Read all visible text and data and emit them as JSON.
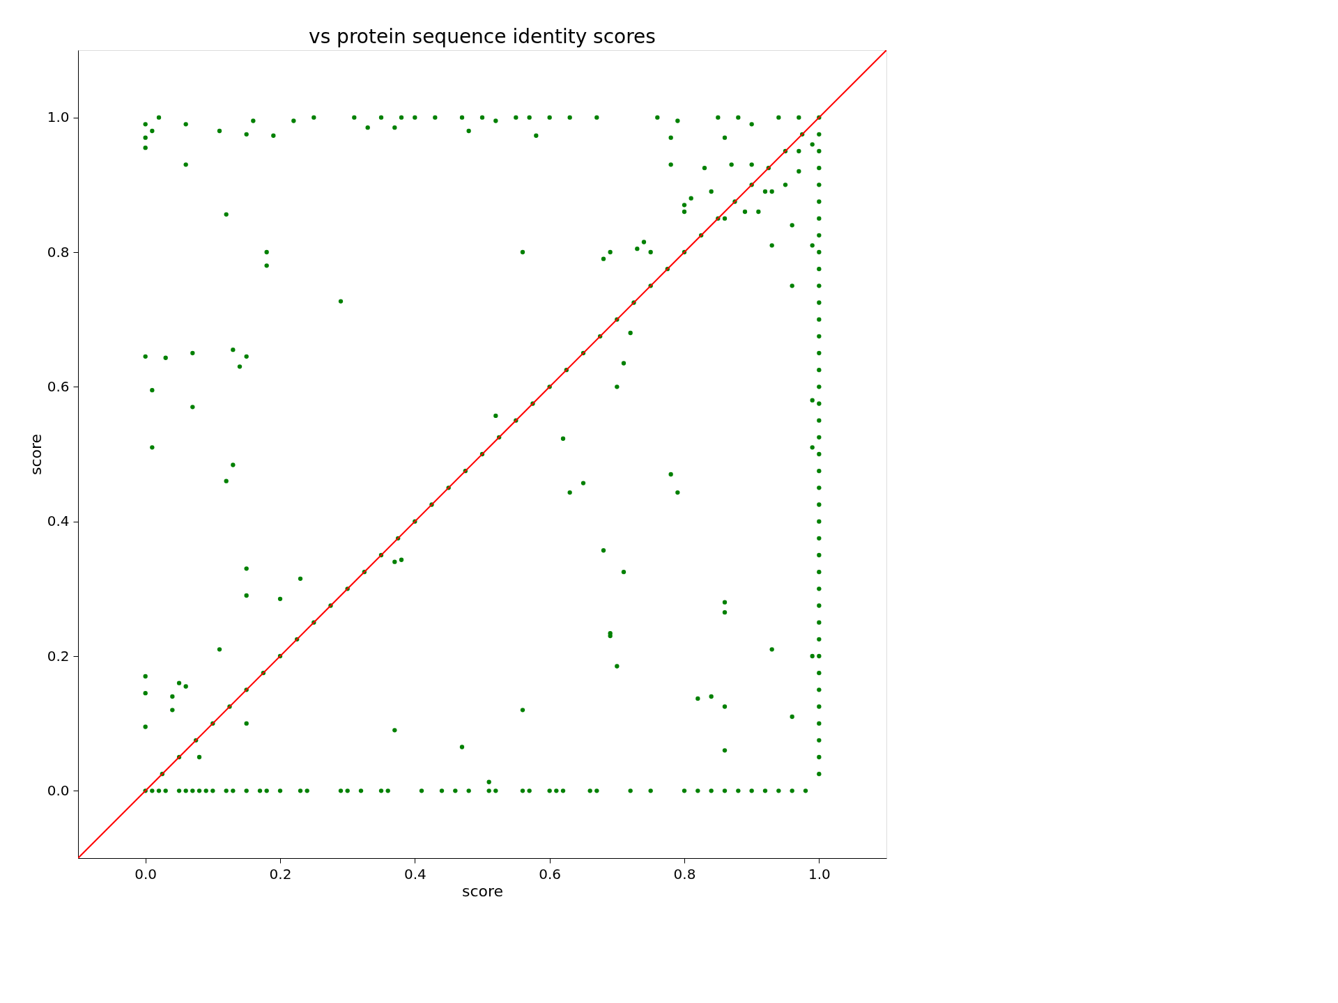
{
  "chart_data": {
    "type": "scatter",
    "title": "vs protein sequence identity scores",
    "xlabel": "score",
    "ylabel": "score",
    "xlim": [
      -0.1,
      1.1
    ],
    "ylim": [
      -0.1,
      1.1
    ],
    "xticks": [
      {
        "value": 0,
        "label": "0.0"
      },
      0.2,
      0.4,
      0.6,
      0.8,
      {
        "value": 1,
        "label": "1.0"
      }
    ],
    "yticks": [
      {
        "value": 0,
        "label": "0.0"
      },
      0.2,
      0.4,
      0.6,
      0.8,
      {
        "value": 1,
        "label": "1.0"
      }
    ],
    "grid": false,
    "marker": "circle",
    "series": [
      {
        "color": "#008000",
        "x": [
          0,
          0.025,
          0.05,
          0.075,
          0.1,
          0.125,
          0.15,
          0.175,
          0.2,
          0.225,
          0.25,
          0.275,
          0.3,
          0.325,
          0.35,
          0.375,
          0.4,
          0.425,
          0.45,
          0.475,
          0.5,
          0.525,
          0.55,
          0.575,
          0.6,
          0.625,
          0.65,
          0.675,
          0.7,
          0.725,
          0.75,
          0.775,
          0.8,
          0.825,
          0.85,
          0.875,
          0.9,
          0.925,
          0.95,
          0.975,
          1.0
        ],
        "values": [
          0,
          0.025,
          0.05,
          0.075,
          0.1,
          0.125,
          0.15,
          0.175,
          0.2,
          0.225,
          0.25,
          0.275,
          0.3,
          0.325,
          0.35,
          0.375,
          0.4,
          0.425,
          0.45,
          0.475,
          0.5,
          0.525,
          0.55,
          0.575,
          0.6,
          0.625,
          0.65,
          0.675,
          0.7,
          0.725,
          0.75,
          0.775,
          0.8,
          0.825,
          0.85,
          0.875,
          0.9,
          0.925,
          0.95,
          0.975,
          1.0
        ]
      },
      {
        "color": "#008000",
        "x": [
          1,
          1,
          1,
          1,
          1,
          1,
          1,
          1,
          1,
          1,
          1,
          1,
          1,
          1,
          1,
          1,
          1,
          1,
          1,
          1,
          1,
          1,
          1,
          1,
          1,
          1,
          1,
          1,
          1,
          1,
          1,
          1,
          1,
          1,
          1,
          1,
          1,
          1,
          1,
          0.99,
          0.99,
          0.99,
          0.99,
          0.99
        ],
        "values": [
          0.025,
          0.05,
          0.075,
          0.1,
          0.125,
          0.15,
          0.175,
          0.2,
          0.225,
          0.25,
          0.275,
          0.3,
          0.325,
          0.35,
          0.375,
          0.4,
          0.425,
          0.45,
          0.475,
          0.5,
          0.525,
          0.55,
          0.575,
          0.6,
          0.625,
          0.65,
          0.675,
          0.7,
          0.725,
          0.75,
          0.775,
          0.8,
          0.825,
          0.85,
          0.875,
          0.9,
          0.925,
          0.95,
          0.975,
          0.2,
          0.51,
          0.58,
          0.81,
          0.96
        ]
      },
      {
        "color": "#008000",
        "x": [
          0.01,
          0.02,
          0.03,
          0.05,
          0.06,
          0.07,
          0.08,
          0.09,
          0.1,
          0.12,
          0.13,
          0.15,
          0.17,
          0.18,
          0.2,
          0.23,
          0.24,
          0.29,
          0.3,
          0.32,
          0.35,
          0.36,
          0.41,
          0.44,
          0.46,
          0.48,
          0.51,
          0.52,
          0.56,
          0.57,
          0.6,
          0.61,
          0.62,
          0.66,
          0.67,
          0.72,
          0.75,
          0.8,
          0.82,
          0.84,
          0.86,
          0.88,
          0.9,
          0.92,
          0.94,
          0.96,
          0.98
        ],
        "values": [
          0,
          0,
          0,
          0,
          0,
          0,
          0,
          0,
          0,
          0,
          0,
          0,
          0,
          0,
          0,
          0,
          0,
          0,
          0,
          0,
          0,
          0,
          0,
          0,
          0,
          0,
          0,
          0,
          0,
          0,
          0,
          0,
          0,
          0,
          0,
          0,
          0,
          0,
          0,
          0,
          0,
          0,
          0,
          0,
          0,
          0,
          0
        ]
      },
      {
        "color": "#008000",
        "x": [
          0,
          0,
          0,
          0.01,
          0.02,
          0.06,
          0.11,
          0.15,
          0.16,
          0.19,
          0.22,
          0.25,
          0.31,
          0.33,
          0.35,
          0.37,
          0.38,
          0.4,
          0.43,
          0.47,
          0.48,
          0.5,
          0.52,
          0.55,
          0.57,
          0.58,
          0.6,
          0.63,
          0.67,
          0.76,
          0.78,
          0.79,
          0.85,
          0.86,
          0.88,
          0.9,
          0.94,
          0.97
        ],
        "values": [
          0.99,
          0.97,
          0.955,
          0.98,
          1.0,
          0.99,
          0.98,
          0.975,
          0.995,
          0.973,
          0.995,
          1.0,
          1.0,
          0.985,
          1.0,
          0.985,
          1.0,
          1.0,
          1.0,
          1.0,
          0.98,
          1.0,
          0.995,
          1.0,
          1.0,
          0.973,
          1.0,
          1.0,
          1.0,
          1.0,
          0.97,
          0.995,
          1.0,
          0.97,
          1.0,
          0.99,
          1.0,
          1.0
        ]
      },
      {
        "color": "#008000",
        "x": [
          0.06,
          0.12,
          0.18,
          0.18,
          0.29,
          0,
          0.07,
          0.13,
          0.15,
          0.14,
          0.03,
          0.01,
          0.07,
          0.01,
          0.13,
          0.12,
          0.15,
          0.15,
          0.23,
          0.2,
          0.11,
          0.15,
          0,
          0,
          0,
          0.04,
          0.04,
          0.05,
          0.06,
          0.08,
          0.37,
          0.37,
          0.38,
          0.47,
          0.51,
          0.52,
          0.56,
          0.56,
          0.62,
          0.63,
          0.65,
          0.68,
          0.69,
          0.69,
          0.7,
          0.71,
          0.71,
          0.72,
          0.7,
          0.69,
          0.68,
          0.73,
          0.74,
          0.75,
          0.78,
          0.79,
          0.82,
          0.84,
          0.86,
          0.86,
          0.86,
          0.86,
          0.93,
          0.96,
          0.93,
          0.96,
          0.96,
          0.8,
          0.8,
          0.81,
          0.84,
          0.86,
          0.89,
          0.91,
          0.92,
          0.93,
          0.95,
          0.97,
          0.97,
          0.78,
          0.83,
          0.87,
          0.9
        ],
        "values": [
          0.93,
          0.856,
          0.8,
          0.78,
          0.727,
          0.645,
          0.65,
          0.655,
          0.645,
          0.63,
          0.643,
          0.595,
          0.57,
          0.51,
          0.484,
          0.46,
          0.33,
          0.29,
          0.315,
          0.285,
          0.21,
          0.1,
          0.17,
          0.145,
          0.095,
          0.12,
          0.14,
          0.16,
          0.155,
          0.05,
          0.09,
          0.34,
          0.343,
          0.065,
          0.013,
          0.557,
          0.12,
          0.8,
          0.523,
          0.443,
          0.457,
          0.357,
          0.234,
          0.23,
          0.185,
          0.325,
          0.635,
          0.68,
          0.6,
          0.8,
          0.79,
          0.805,
          0.815,
          0.8,
          0.47,
          0.443,
          0.137,
          0.14,
          0.28,
          0.265,
          0.125,
          0.06,
          0.21,
          0.11,
          0.81,
          0.75,
          0.84,
          0.86,
          0.87,
          0.88,
          0.89,
          0.85,
          0.86,
          0.86,
          0.89,
          0.89,
          0.9,
          0.92,
          0.95,
          0.93,
          0.925,
          0.93,
          0.93
        ]
      },
      {
        "type": "line",
        "color": "#ff0000",
        "marker": "none",
        "x": [
          -0.1,
          1.1
        ],
        "values": [
          -0.1,
          1.1
        ]
      }
    ]
  }
}
